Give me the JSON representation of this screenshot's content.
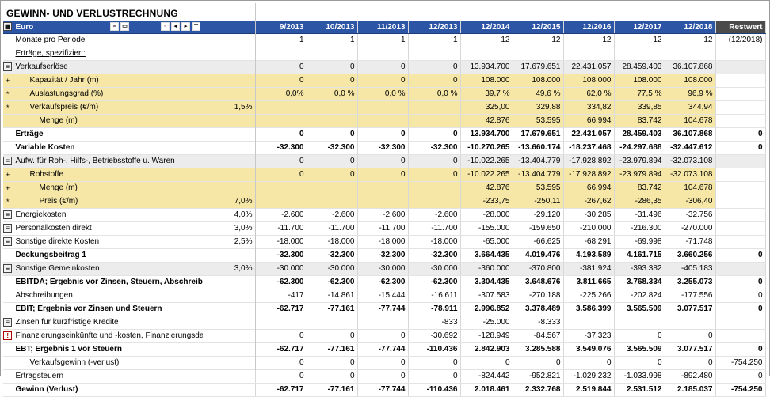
{
  "title": "GEWINN- UND VERLUSTRECHNUNG",
  "currency": "Euro",
  "columns": [
    "9/2013",
    "10/2013",
    "11/2013",
    "12/2013",
    "12/2014",
    "12/2015",
    "12/2016",
    "12/2017",
    "12/2018"
  ],
  "restwert_header": "Restwert",
  "rows": {
    "monate": {
      "label": "Monate pro Periode",
      "vals": [
        "1",
        "1",
        "1",
        "1",
        "12",
        "12",
        "12",
        "12",
        "12"
      ],
      "rest": "(12/2018)"
    },
    "spez": {
      "label": "Erträge, spezifiziert:"
    },
    "vk": {
      "label": "Verkaufserlöse",
      "vals": [
        "0",
        "0",
        "0",
        "0",
        "13.934.700",
        "17.679.651",
        "22.431.057",
        "28.459.403",
        "36.107.868"
      ],
      "rest": ""
    },
    "kap": {
      "label": "Kapazität / Jahr (m)",
      "vals": [
        "0",
        "0",
        "0",
        "0",
        "108.000",
        "108.000",
        "108.000",
        "108.000",
        "108.000"
      ],
      "rest": ""
    },
    "ausl": {
      "label": "Auslastungsgrad (%)",
      "vals": [
        "0,0%",
        "0,0 %",
        "0,0 %",
        "0,0 %",
        "39,7 %",
        "49,6 %",
        "62,0 %",
        "77,5 %",
        "96,9 %"
      ],
      "rest": ""
    },
    "vkp": {
      "label": "Verkaufspreis (€/m)",
      "pct": "1,5%",
      "vals": [
        "",
        "",
        "",
        "",
        "325,00",
        "329,88",
        "334,82",
        "339,85",
        "344,94"
      ],
      "rest": ""
    },
    "menge": {
      "label": "Menge (m)",
      "vals": [
        "",
        "",
        "",
        "",
        "42.876",
        "53.595",
        "66.994",
        "83.742",
        "104.678"
      ],
      "rest": ""
    },
    "ertraege": {
      "label": "Erträge",
      "vals": [
        "0",
        "0",
        "0",
        "0",
        "13.934.700",
        "17.679.651",
        "22.431.057",
        "28.459.403",
        "36.107.868"
      ],
      "rest": "0"
    },
    "varkost": {
      "label": "Variable Kosten",
      "vals": [
        "-32.300",
        "-32.300",
        "-32.300",
        "-32.300",
        "-10.270.265",
        "-13.660.174",
        "-18.237.468",
        "-24.297.688",
        "-32.447.612"
      ],
      "rest": "0"
    },
    "aufw": {
      "label": "Aufw. für Roh-, Hilfs-, Betriebsstoffe u. Waren",
      "vals": [
        "0",
        "0",
        "0",
        "0",
        "-10.022.265",
        "-13.404.779",
        "-17.928.892",
        "-23.979.894",
        "-32.073.108"
      ],
      "rest": ""
    },
    "roh": {
      "label": "Rohstoffe",
      "vals": [
        "0",
        "0",
        "0",
        "0",
        "-10.022.265",
        "-13.404.779",
        "-17.928.892",
        "-23.979.894",
        "-32.073.108"
      ],
      "rest": ""
    },
    "menge2": {
      "label": "Menge (m)",
      "vals": [
        "",
        "",
        "",
        "",
        "42.876",
        "53.595",
        "66.994",
        "83.742",
        "104.678"
      ],
      "rest": ""
    },
    "preis": {
      "label": "Preis (€/m)",
      "pct": "7,0%",
      "vals": [
        "",
        "",
        "",
        "",
        "-233,75",
        "-250,11",
        "-267,62",
        "-286,35",
        "-306,40"
      ],
      "rest": ""
    },
    "energie": {
      "label": "Energiekosten",
      "pct": "4,0%",
      "vals": [
        "-2.600",
        "-2.600",
        "-2.600",
        "-2.600",
        "-28.000",
        "-29.120",
        "-30.285",
        "-31.496",
        "-32.756"
      ],
      "rest": ""
    },
    "personal": {
      "label": "Personalkosten direkt",
      "pct": "3,0%",
      "vals": [
        "-11.700",
        "-11.700",
        "-11.700",
        "-11.700",
        "-155.000",
        "-159.650",
        "-210.000",
        "-216.300",
        "-270.000"
      ],
      "rest": ""
    },
    "sonstd": {
      "label": "Sonstige direkte Kosten",
      "pct": "2,5%",
      "vals": [
        "-18.000",
        "-18.000",
        "-18.000",
        "-18.000",
        "-65.000",
        "-66.625",
        "-68.291",
        "-69.998",
        "-71.748"
      ],
      "rest": ""
    },
    "db1": {
      "label": "Deckungsbeitrag 1",
      "vals": [
        "-32.300",
        "-32.300",
        "-32.300",
        "-32.300",
        "3.664.435",
        "4.019.476",
        "4.193.589",
        "4.161.715",
        "3.660.256"
      ],
      "rest": "0"
    },
    "sgk": {
      "label": "Sonstige Gemeinkosten",
      "pct": "3,0%",
      "vals": [
        "-30.000",
        "-30.000",
        "-30.000",
        "-30.000",
        "-360.000",
        "-370.800",
        "-381.924",
        "-393.382",
        "-405.183"
      ],
      "rest": ""
    },
    "ebitda": {
      "label": "EBITDA; Ergebnis vor Zinsen, Steuern, Abschreibungen",
      "vals": [
        "-62.300",
        "-62.300",
        "-62.300",
        "-62.300",
        "3.304.435",
        "3.648.676",
        "3.811.665",
        "3.768.334",
        "3.255.073"
      ],
      "rest": "0"
    },
    "abschr": {
      "label": "Abschreibungen",
      "vals": [
        "-417",
        "-14.861",
        "-15.444",
        "-16.611",
        "-307.583",
        "-270.188",
        "-225.266",
        "-202.824",
        "-177.556"
      ],
      "rest": "0"
    },
    "ebit": {
      "label": "EBIT; Ergebnis vor Zinsen und Steuern",
      "vals": [
        "-62.717",
        "-77.161",
        "-77.744",
        "-78.911",
        "2.996.852",
        "3.378.489",
        "3.586.399",
        "3.565.509",
        "3.077.517"
      ],
      "rest": "0"
    },
    "zinsen": {
      "label": "Zinsen für kurzfristige Kredite",
      "vals": [
        "",
        "",
        "",
        "-833",
        "-25.000",
        "-8.333",
        "",
        "",
        ""
      ],
      "rest": ""
    },
    "finanz": {
      "label": "Finanzierungseinkünfte und -kosten, Finanzierungsdatei",
      "vals": [
        "0",
        "0",
        "0",
        "-30.692",
        "-128.949",
        "-84.567",
        "-37.323",
        "0",
        "0"
      ],
      "rest": ""
    },
    "ebt": {
      "label": "EBT; Ergebnis 1 vor Steuern",
      "vals": [
        "-62.717",
        "-77.161",
        "-77.744",
        "-110.436",
        "2.842.903",
        "3.285.588",
        "3.549.076",
        "3.565.509",
        "3.077.517"
      ],
      "rest": "0"
    },
    "vkgew": {
      "label": "Verkaufsgewinn (-verlust)",
      "vals": [
        "0",
        "0",
        "0",
        "0",
        "0",
        "0",
        "0",
        "0",
        "0"
      ],
      "rest": "-754.250"
    },
    "steuern": {
      "label": "Ertragsteuern",
      "vals": [
        "0",
        "0",
        "0",
        "0",
        "-824.442",
        "-952.821",
        "-1.029.232",
        "-1.033.998",
        "-892.480"
      ],
      "rest": "0"
    },
    "gewinn": {
      "label": "Gewinn (Verlust)",
      "vals": [
        "-62.717",
        "-77.161",
        "-77.744",
        "-110.436",
        "2.018.461",
        "2.332.768",
        "2.519.844",
        "2.531.512",
        "2.185.037"
      ],
      "rest": "-754.250"
    }
  }
}
